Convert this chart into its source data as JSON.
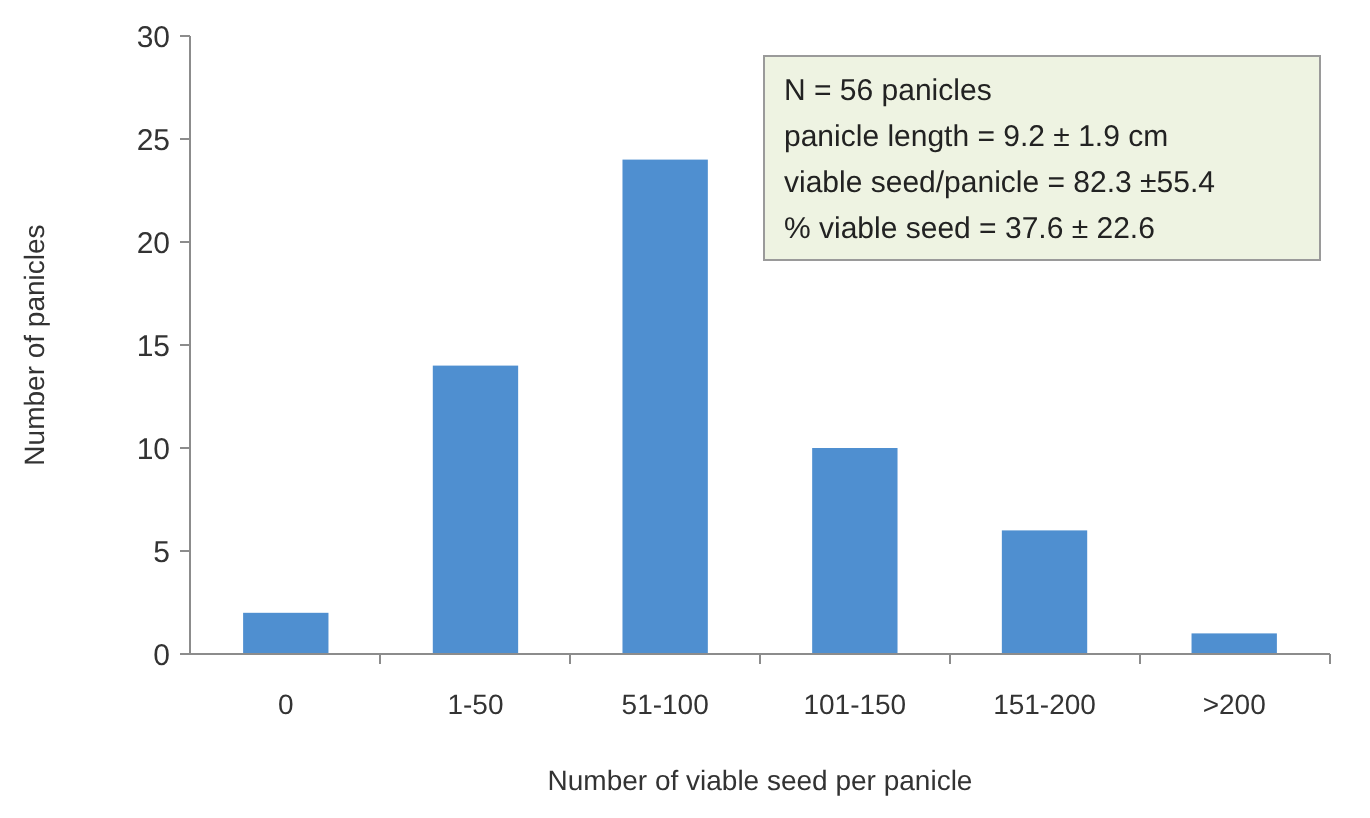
{
  "chart_data": {
    "type": "bar",
    "xlabel": "Number of viable seed per panicle",
    "ylabel": "Number of panicles",
    "categories": [
      "0",
      "1-50",
      "51-100",
      "101-150",
      "151-200",
      ">200"
    ],
    "values": [
      2,
      14,
      24,
      10,
      6,
      1
    ],
    "color": "#4f8fd0",
    "ylim": [
      0,
      30
    ],
    "yticks": [
      0,
      5,
      10,
      15,
      20,
      25,
      30
    ],
    "grid": false,
    "annotations": [
      "N = 56 panicles",
      "panicle length = 9.2 ± 1.9 cm",
      "viable seed/panicle = 82.3 ±55.4",
      "% viable seed = 37.6 ± 22.6"
    ]
  }
}
